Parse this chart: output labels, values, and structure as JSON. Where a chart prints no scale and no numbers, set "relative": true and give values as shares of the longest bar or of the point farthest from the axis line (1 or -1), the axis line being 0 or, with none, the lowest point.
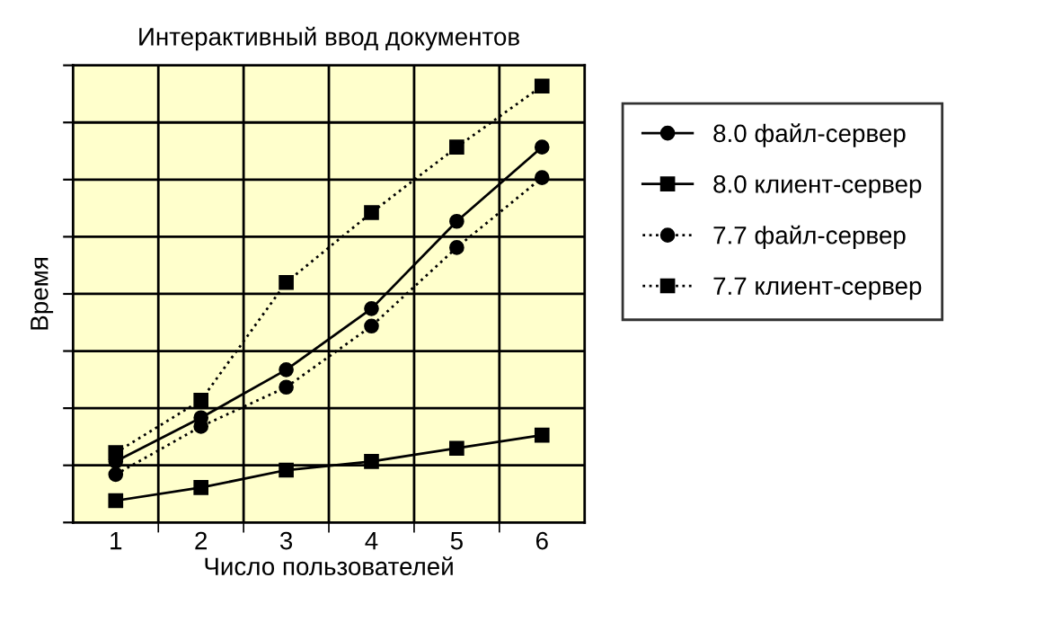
{
  "chart_data": {
    "type": "line",
    "title": "Интерактивный ввод документов",
    "xlabel": "Число пользователей",
    "ylabel": "Время",
    "categories": [
      "1",
      "2",
      "3",
      "4",
      "5",
      "6"
    ],
    "relative": true,
    "grid": true,
    "legend": "right",
    "series": [
      {
        "name": "8.0 файл-сервер",
        "color": "#000000",
        "marker": "circle",
        "line_style": "solid",
        "values": [
          0.14,
          0.24,
          0.35,
          0.49,
          0.69,
          0.86
        ]
      },
      {
        "name": "8.0 клиент-сервер",
        "color": "#000000",
        "marker": "square",
        "line_style": "solid",
        "values": [
          0.05,
          0.08,
          0.12,
          0.14,
          0.17,
          0.2
        ]
      },
      {
        "name": "7.7 файл-сервер",
        "color": "#000000",
        "marker": "circle",
        "line_style": "dotted",
        "values": [
          0.11,
          0.22,
          0.31,
          0.45,
          0.63,
          0.79
        ]
      },
      {
        "name": "7.7 клиент-сервер",
        "color": "#000000",
        "marker": "square",
        "line_style": "dotted",
        "values": [
          0.16,
          0.28,
          0.55,
          0.71,
          0.86,
          1.0
        ]
      }
    ]
  }
}
